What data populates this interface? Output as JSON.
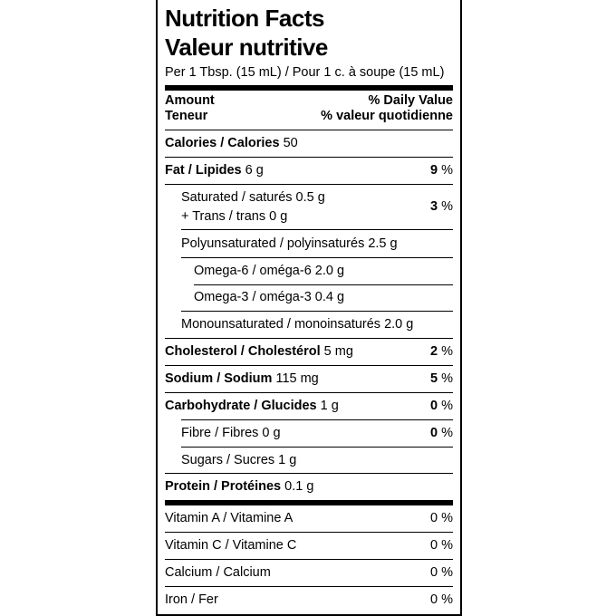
{
  "title_en": "Nutrition Facts",
  "title_fr": "Valeur nutritive",
  "serving": "Per 1 Tbsp. (15 mL) / Pour 1 c. à soupe (15 mL)",
  "header": {
    "amount_en": "Amount",
    "amount_fr": "Teneur",
    "dv_en": "% Daily Value",
    "dv_fr": "% valeur quotidienne"
  },
  "calories": {
    "label": "Calories / Calories",
    "value": "50"
  },
  "nutrients": [
    {
      "label": "Fat / Lipides",
      "amount": "6 g",
      "dv": "9",
      "pct": "%"
    },
    {
      "label": "Saturated / saturés 0.5 g",
      "label2": "+ Trans / trans 0 g",
      "dv": "3",
      "pct": "%"
    },
    {
      "label": "Polyunsaturated / polyinsaturés 2.5 g"
    },
    {
      "label": "Omega-6 / oméga-6 2.0 g"
    },
    {
      "label": "Omega-3 / oméga-3 0.4 g"
    },
    {
      "label": "Monounsaturated / monoinsaturés 2.0 g"
    },
    {
      "label": "Cholesterol / Cholestérol",
      "amount": "5 mg",
      "dv": "2",
      "pct": "%"
    },
    {
      "label": "Sodium / Sodium",
      "amount": "115 mg",
      "dv": "5",
      "pct": "%"
    },
    {
      "label": "Carbohydrate / Glucides",
      "amount": "1 g",
      "dv": "0",
      "pct": "%"
    },
    {
      "label": "Fibre / Fibres 0 g",
      "dv": "0",
      "pct": "%"
    },
    {
      "label": "Sugars / Sucres 1 g"
    },
    {
      "label": "Protein / Protéines",
      "amount": "0.1 g"
    }
  ],
  "vitamins": [
    {
      "label": "Vitamin A / Vitamine A",
      "dv": "0 %"
    },
    {
      "label": "Vitamin C / Vitamine C",
      "dv": "0 %"
    },
    {
      "label": "Calcium / Calcium",
      "dv": "0 %"
    },
    {
      "label": "Iron / Fer",
      "dv": "0 %"
    }
  ]
}
